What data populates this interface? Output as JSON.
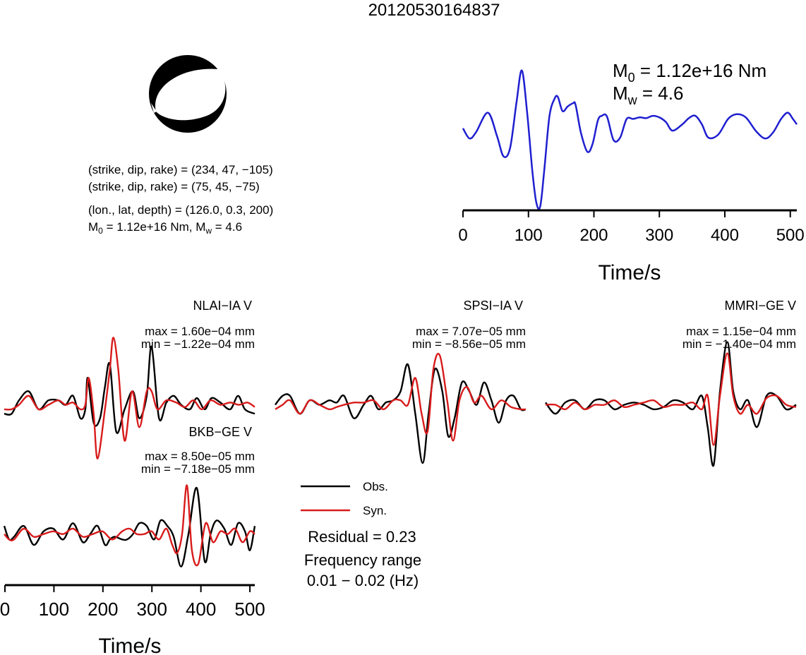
{
  "title": "20120530164837",
  "mechanism": {
    "line1": "(strike, dip, rake) = (234, 47, −105)",
    "line2": "(strike, dip, rake) = (75, 45, −75)",
    "line3": "(lon., lat, depth) = (126.0, 0.3, 200)",
    "line4_m0": "M",
    "line4_m0_sub": "0",
    "line4_mid": " = 1.12e+16 Nm, M",
    "line4_mw_sub": "w",
    "line4_end": " = 4.6",
    "fill_color": "#000000"
  },
  "moment_label": {
    "m0_base": "M",
    "m0_sub": "0",
    "m0_value": " = 1.12e+16 Nm",
    "mw_base": "M",
    "mw_sub": "w",
    "mw_value": " = 4.6"
  },
  "colors": {
    "stf": "#1f1fd0",
    "observed": "#000000",
    "synthetic": "#d81b1b"
  },
  "legend": {
    "obs_label": "Obs.",
    "syn_label": "Syn.",
    "residual": "Residual = 0.23",
    "freq_title": "Frequency range",
    "freq_range": "0.01 − 0.02 (Hz)"
  },
  "chart_data": [
    {
      "type": "line",
      "name": "source-time-function",
      "xlabel": "Time/s",
      "ylabel": "",
      "xlim": [
        0,
        510
      ],
      "ylim": [
        -1.05,
        1.1
      ],
      "xticks": [
        0,
        100,
        200,
        300,
        400,
        500
      ],
      "xticklabels": [
        "0",
        "100",
        "200",
        "300",
        "400",
        "500"
      ],
      "grid": false,
      "series": [
        {
          "x": [
            0,
            10,
            20,
            38,
            52,
            62,
            72,
            82,
            90,
            98,
            106,
            112,
            118,
            124,
            132,
            140,
            145,
            152,
            160,
            168,
            172,
            180,
            190,
            198,
            206,
            212,
            220,
            230,
            240,
            250,
            260,
            270,
            280,
            290,
            300,
            310,
            320,
            335,
            345,
            355,
            365,
            375,
            390,
            405,
            418,
            432,
            448,
            462,
            474,
            486,
            496,
            504,
            510
          ],
          "y": [
            0.0,
            -0.13,
            -0.05,
            0.2,
            -0.1,
            -0.36,
            -0.25,
            0.35,
            0.74,
            0.2,
            -0.55,
            -0.95,
            -1.0,
            -0.55,
            0.15,
            0.38,
            0.4,
            0.22,
            0.28,
            0.32,
            0.3,
            -0.05,
            -0.3,
            -0.2,
            0.1,
            0.16,
            0.15,
            -0.15,
            -0.12,
            0.12,
            0.12,
            0.14,
            0.13,
            0.16,
            0.14,
            0.08,
            -0.03,
            0.05,
            0.13,
            0.16,
            0.05,
            -0.12,
            -0.08,
            0.12,
            0.18,
            0.14,
            -0.04,
            -0.13,
            -0.05,
            0.12,
            0.2,
            0.12,
            0.05
          ]
        }
      ]
    },
    {
      "type": "line",
      "name": "NLAI-IA V",
      "title": "NLAI−IA V",
      "max_label": "max = 1.60e−04 mm",
      "min_label": "min = −1.22e−04 mm",
      "xlim": [
        0,
        510
      ],
      "ylim": [
        -1.3,
        1.6
      ],
      "series": [
        {
          "name": "Obs.",
          "x": [
            0,
            15,
            30,
            50,
            70,
            90,
            110,
            125,
            140,
            155,
            165,
            170,
            182,
            195,
            205,
            215,
            228,
            245,
            262,
            275,
            290,
            300,
            315,
            330,
            345,
            360,
            378,
            392,
            408,
            422,
            440,
            460,
            476,
            490,
            510
          ],
          "y": [
            -0.2,
            -0.2,
            0.1,
            0.3,
            -0.1,
            0.1,
            0.1,
            0.0,
            0.2,
            -0.3,
            -0.1,
            0.6,
            -0.4,
            -0.3,
            0.4,
            0.9,
            -0.6,
            -0.1,
            0.3,
            -0.3,
            0.2,
            1.3,
            -0.3,
            0.05,
            0.2,
            0.0,
            -0.1,
            0.15,
            -0.1,
            0.15,
            0.05,
            -0.1,
            0.2,
            -0.1,
            -0.2
          ]
        },
        {
          "name": "Syn.",
          "x": [
            0,
            15,
            30,
            50,
            70,
            90,
            110,
            125,
            140,
            155,
            165,
            172,
            182,
            190,
            205,
            215,
            222,
            232,
            245,
            260,
            275,
            290,
            300,
            312,
            330,
            350,
            368,
            385,
            402,
            420,
            440,
            460,
            478,
            495,
            510
          ],
          "y": [
            -0.1,
            -0.1,
            0.0,
            0.2,
            -0.1,
            0.0,
            0.1,
            0.0,
            0.05,
            -0.1,
            0.0,
            0.6,
            -0.2,
            -1.2,
            -0.1,
            0.8,
            1.5,
            0.8,
            -0.8,
            0.3,
            -0.5,
            0.3,
            0.3,
            -0.1,
            0.1,
            0.05,
            -0.05,
            0.1,
            -0.1,
            0.1,
            0.0,
            0.05,
            0.0,
            0.05,
            -0.05
          ]
        }
      ]
    },
    {
      "type": "line",
      "name": "SPSI-IA V",
      "title": "SPSI−IA V",
      "max_label": "max = 7.07e−05 mm",
      "min_label": "min = −8.56e−05 mm",
      "xlim": [
        0,
        510
      ],
      "ylim": [
        -1.3,
        1.6
      ],
      "series": [
        {
          "name": "Obs.",
          "x": [
            0,
            15,
            30,
            50,
            70,
            90,
            110,
            125,
            140,
            160,
            180,
            195,
            210,
            225,
            240,
            255,
            270,
            285,
            300,
            312,
            325,
            340,
            352,
            365,
            380,
            395,
            410,
            425,
            440,
            455,
            470,
            485,
            500,
            510
          ],
          "y": [
            0.0,
            0.2,
            0.2,
            -0.2,
            0.1,
            0.0,
            0.1,
            0.05,
            0.2,
            -0.3,
            0.0,
            0.2,
            -0.1,
            0.05,
            0.1,
            0.3,
            0.9,
            -0.2,
            -1.3,
            -0.2,
            0.8,
            0.3,
            -0.7,
            -0.3,
            0.5,
            0.3,
            0.0,
            0.5,
            0.1,
            -0.4,
            0.1,
            0.2,
            -0.1,
            -0.1
          ]
        },
        {
          "name": "Syn.",
          "x": [
            0,
            15,
            30,
            50,
            70,
            90,
            110,
            125,
            140,
            160,
            180,
            200,
            220,
            240,
            255,
            270,
            285,
            298,
            310,
            322,
            335,
            350,
            362,
            375,
            390,
            405,
            420,
            440,
            460,
            480,
            500,
            510
          ],
          "y": [
            -0.1,
            0.0,
            0.1,
            -0.2,
            0.1,
            0.0,
            -0.1,
            -0.05,
            0.0,
            0.05,
            0.05,
            0.1,
            -0.1,
            0.1,
            0.1,
            0.0,
            0.6,
            -0.2,
            -0.6,
            0.8,
            1.1,
            0.1,
            -0.8,
            0.1,
            0.4,
            0.05,
            0.2,
            -0.1,
            0.1,
            -0.05,
            -0.1,
            -0.1
          ]
        }
      ]
    },
    {
      "type": "line",
      "name": "MMRI-GE V",
      "title": "MMRI−GE V",
      "max_label": "max = 1.15e−04 mm",
      "min_label": "min = −1.40e−04 mm",
      "xlim": [
        0,
        510
      ],
      "ylim": [
        -1.3,
        1.6
      ],
      "series": [
        {
          "name": "Obs.",
          "x": [
            0,
            20,
            40,
            60,
            80,
            100,
            120,
            140,
            160,
            180,
            200,
            220,
            240,
            260,
            280,
            300,
            318,
            330,
            342,
            355,
            370,
            382,
            396,
            412,
            430,
            450,
            470,
            490,
            510
          ],
          "y": [
            0.05,
            -0.2,
            0.05,
            0.1,
            -0.1,
            0.1,
            0.1,
            -0.1,
            0.0,
            0.05,
            0.0,
            -0.1,
            -0.05,
            0.1,
            0.05,
            -0.1,
            0.2,
            -0.5,
            -1.35,
            0.3,
            1.4,
            0.3,
            -0.1,
            0.1,
            -0.5,
            0.2,
            0.2,
            -0.1,
            0.0
          ]
        },
        {
          "name": "Syn.",
          "x": [
            0,
            20,
            40,
            60,
            80,
            100,
            120,
            140,
            160,
            180,
            200,
            220,
            240,
            260,
            280,
            300,
            318,
            330,
            342,
            355,
            370,
            382,
            396,
            412,
            430,
            450,
            470,
            490,
            510
          ],
          "y": [
            0.0,
            0.0,
            -0.1,
            0.05,
            -0.1,
            0.0,
            0.0,
            0.1,
            -0.05,
            0.0,
            0.05,
            0.1,
            -0.05,
            0.0,
            0.0,
            0.05,
            -0.1,
            0.2,
            -0.9,
            0.2,
            1.15,
            0.2,
            -0.2,
            0.0,
            -0.2,
            0.15,
            0.2,
            0.0,
            -0.05
          ]
        }
      ]
    },
    {
      "type": "line",
      "name": "BKB-GE V",
      "title": "BKB−GE V",
      "max_label": "max = 8.50e−05 mm",
      "min_label": "min = −7.18e−05 mm",
      "xlabel": "Time/s",
      "xlim": [
        0,
        510
      ],
      "ylim": [
        -0.8,
        1.0
      ],
      "xticks": [
        0,
        100,
        200,
        300,
        400,
        500
      ],
      "xticklabels": [
        "0",
        "100",
        "200",
        "300",
        "400",
        "500"
      ],
      "series": [
        {
          "name": "Obs.",
          "x": [
            0,
            10,
            20,
            40,
            60,
            80,
            100,
            120,
            140,
            160,
            175,
            190,
            205,
            215,
            225,
            240,
            250,
            262,
            275,
            290,
            305,
            318,
            332,
            345,
            360,
            375,
            392,
            408,
            420,
            432,
            448,
            462,
            476,
            490,
            500,
            510
          ],
          "y": [
            0.15,
            -0.1,
            -0.05,
            0.15,
            -0.2,
            0.05,
            0.1,
            -0.1,
            0.2,
            -0.15,
            0.0,
            0.15,
            -0.2,
            -0.1,
            -0.05,
            -0.1,
            -0.1,
            0.0,
            0.2,
            0.15,
            -0.1,
            0.25,
            0.15,
            -0.05,
            -0.6,
            0.0,
            0.85,
            -0.5,
            0.0,
            0.25,
            0.1,
            -0.2,
            0.2,
            0.05,
            -0.3,
            0.15
          ]
        },
        {
          "name": "Syn.",
          "x": [
            0,
            10,
            20,
            40,
            60,
            80,
            100,
            120,
            140,
            160,
            180,
            200,
            220,
            240,
            255,
            270,
            285,
            300,
            315,
            330,
            342,
            352,
            362,
            372,
            382,
            395,
            410,
            425,
            440,
            455,
            470,
            485,
            500,
            510
          ],
          "y": [
            0.0,
            -0.1,
            -0.1,
            0.1,
            -0.05,
            0.0,
            0.05,
            0.0,
            0.1,
            -0.05,
            0.0,
            0.05,
            -0.1,
            0.05,
            0.1,
            0.0,
            0.0,
            0.05,
            -0.1,
            0.1,
            -0.2,
            -0.35,
            0.0,
            0.9,
            -0.3,
            -0.55,
            0.2,
            -0.15,
            0.05,
            0.0,
            0.1,
            -0.15,
            0.05,
            0.0
          ]
        }
      ]
    }
  ]
}
